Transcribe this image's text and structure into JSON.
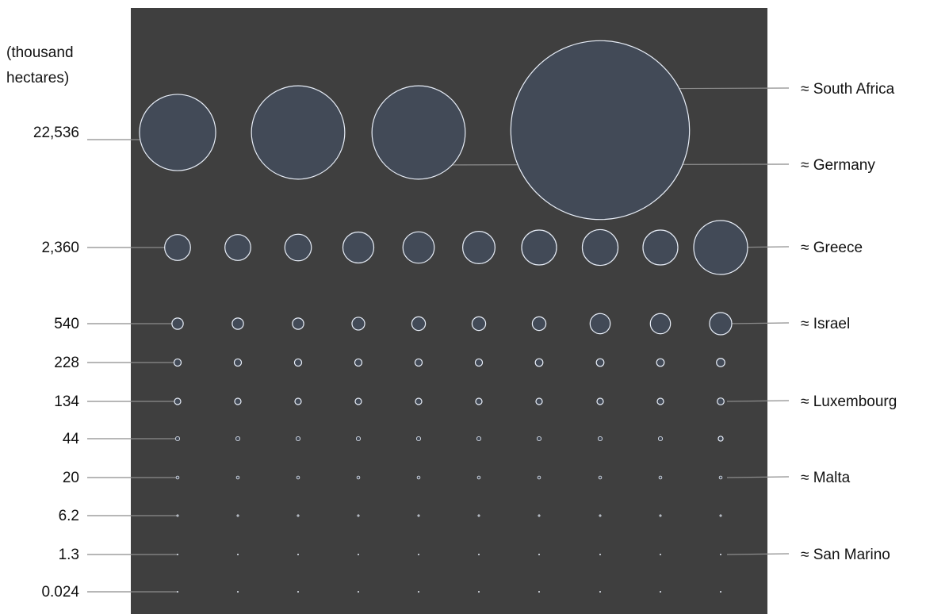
{
  "chart_data": {
    "type": "bubble-grid",
    "unit_label": "(thousand hectares)",
    "unit_lines": [
      "(thousand",
      "hectares)"
    ],
    "rows": [
      {
        "label": "22,536",
        "values": [
          1000,
          1500,
          1500,
          5500
        ]
      },
      {
        "label": "2,360",
        "values": [
          115,
          115,
          122,
          165,
          170,
          180,
          210,
          220,
          210,
          500
        ]
      },
      {
        "label": "540",
        "values": [
          22,
          22,
          22,
          28,
          32,
          32,
          32,
          70,
          70,
          85
        ]
      },
      {
        "label": "228",
        "values": [
          9,
          9,
          9,
          9,
          9,
          9,
          10,
          10,
          10,
          12
        ]
      },
      {
        "label": "134",
        "values": [
          7,
          7,
          7,
          7,
          7,
          7,
          7,
          7,
          7,
          8
        ]
      },
      {
        "label": "44",
        "values": [
          3,
          3,
          3,
          3,
          3,
          3,
          3,
          3,
          3,
          4
        ]
      },
      {
        "label": "20",
        "values": [
          1.5,
          1.5,
          1.5,
          1.5,
          1.5,
          1.5,
          1.5,
          1.5,
          1.5,
          1.5
        ]
      },
      {
        "label": "6.2",
        "values": [
          0.5,
          0.5,
          0.5,
          0.5,
          0.5,
          0.5,
          0.5,
          0.5,
          0.5,
          0.5
        ]
      },
      {
        "label": "1.3",
        "values": [
          0.15,
          0.15,
          0.15,
          0.15,
          0.15,
          0.15,
          0.15,
          0.15,
          0.15,
          0.15
        ]
      },
      {
        "label": "0.024",
        "values": [
          0.05,
          0.05,
          0.05,
          0.05,
          0.05,
          0.05,
          0.05,
          0.05,
          0.05,
          0.05
        ]
      }
    ],
    "annotations": [
      {
        "text": "≈ South Africa",
        "row": 0,
        "col": 3
      },
      {
        "text": "≈ Germany",
        "row": 0,
        "col": 2
      },
      {
        "text": "≈ Greece",
        "row": 1,
        "col": 9
      },
      {
        "text": "≈ Israel",
        "row": 2,
        "col": 9
      },
      {
        "text": "≈ Luxembourg",
        "row": 4,
        "col": 9
      },
      {
        "text": "≈ Malta",
        "row": 6,
        "col": 9
      },
      {
        "text": "≈ San Marino",
        "row": 8,
        "col": 9
      }
    ],
    "colors": {
      "background": "#3f3f3f",
      "bubble_fill": "#424a57",
      "bubble_stroke": "#e8eef8"
    }
  }
}
